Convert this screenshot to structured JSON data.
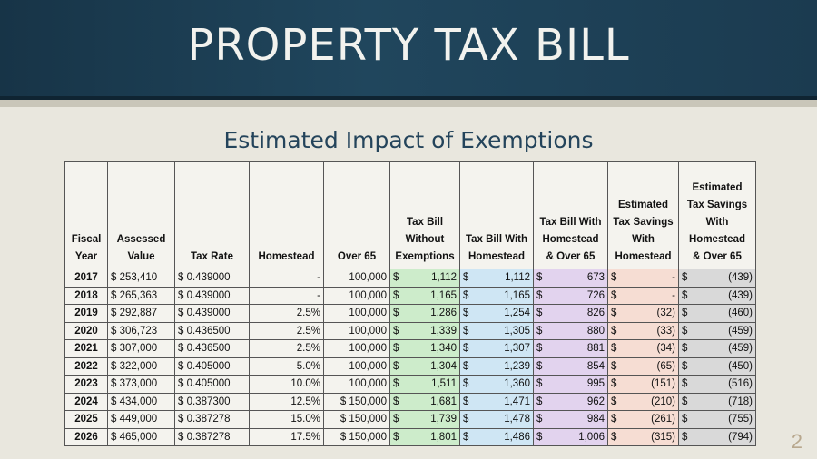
{
  "title": "PROPERTY TAX BILL",
  "subtitle": "Estimated Impact of Exemptions",
  "headers": [
    "Fiscal Year",
    "Assessed Value",
    "Tax Rate",
    "Homestead",
    "Over 65",
    "Tax Bill Without Exemptions",
    "Tax Bill With Homestead",
    "Tax Bill With Homestead & Over 65",
    "Estimated Tax Savings With Homestead",
    "Estimated Tax Savings With Homestead & Over 65"
  ],
  "header_lines": [
    [
      "Fiscal",
      "Year"
    ],
    [
      "Assessed",
      "Value"
    ],
    [
      "Tax Rate"
    ],
    [
      "Homestead"
    ],
    [
      "Over 65"
    ],
    [
      "Tax Bill",
      "Without",
      "Exemptions"
    ],
    [
      "Tax Bill With",
      "Homestead"
    ],
    [
      "Tax Bill With",
      "Homestead",
      "& Over 65"
    ],
    [
      "Estimated",
      "Tax Savings",
      "With",
      "Homestead"
    ],
    [
      "Estimated",
      "Tax Savings",
      "With",
      "Homestead",
      "& Over 65"
    ]
  ],
  "rows": [
    {
      "year": "2017",
      "assessed": "$ 253,410",
      "rate": "$ 0.439000",
      "homestead": "-",
      "over65": "100,000",
      "no_ex": "1,112",
      "with_h": "1,112",
      "with_h65": "673",
      "sav_h": "-",
      "sav_h65": "(439)"
    },
    {
      "year": "2018",
      "assessed": "$ 265,363",
      "rate": "$ 0.439000",
      "homestead": "-",
      "over65": "100,000",
      "no_ex": "1,165",
      "with_h": "1,165",
      "with_h65": "726",
      "sav_h": "-",
      "sav_h65": "(439)"
    },
    {
      "year": "2019",
      "assessed": "$ 292,887",
      "rate": "$ 0.439000",
      "homestead": "2.5%",
      "over65": "100,000",
      "no_ex": "1,286",
      "with_h": "1,254",
      "with_h65": "826",
      "sav_h": "(32)",
      "sav_h65": "(460)"
    },
    {
      "year": "2020",
      "assessed": "$ 306,723",
      "rate": "$ 0.436500",
      "homestead": "2.5%",
      "over65": "100,000",
      "no_ex": "1,339",
      "with_h": "1,305",
      "with_h65": "880",
      "sav_h": "(33)",
      "sav_h65": "(459)"
    },
    {
      "year": "2021",
      "assessed": "$ 307,000",
      "rate": "$ 0.436500",
      "homestead": "2.5%",
      "over65": "100,000",
      "no_ex": "1,340",
      "with_h": "1,307",
      "with_h65": "881",
      "sav_h": "(34)",
      "sav_h65": "(459)"
    },
    {
      "year": "2022",
      "assessed": "$ 322,000",
      "rate": "$ 0.405000",
      "homestead": "5.0%",
      "over65": "100,000",
      "no_ex": "1,304",
      "with_h": "1,239",
      "with_h65": "854",
      "sav_h": "(65)",
      "sav_h65": "(450)"
    },
    {
      "year": "2023",
      "assessed": "$ 373,000",
      "rate": "$ 0.405000",
      "homestead": "10.0%",
      "over65": "100,000",
      "no_ex": "1,511",
      "with_h": "1,360",
      "with_h65": "995",
      "sav_h": "(151)",
      "sav_h65": "(516)"
    },
    {
      "year": "2024",
      "assessed": "$ 434,000",
      "rate": "$ 0.387300",
      "homestead": "12.5%",
      "over65": "$ 150,000",
      "no_ex": "1,681",
      "with_h": "1,471",
      "with_h65": "962",
      "sav_h": "(210)",
      "sav_h65": "(718)"
    },
    {
      "year": "2025",
      "assessed": "$ 449,000",
      "rate": "$ 0.387278",
      "homestead": "15.0%",
      "over65": "$ 150,000",
      "no_ex": "1,739",
      "with_h": "1,478",
      "with_h65": "984",
      "sav_h": "(261)",
      "sav_h65": "(755)"
    },
    {
      "year": "2026",
      "assessed": "$ 465,000",
      "rate": "$ 0.387278",
      "homestead": "17.5%",
      "over65": "$ 150,000",
      "no_ex": "1,801",
      "with_h": "1,486",
      "with_h65": "1,006",
      "sav_h": "(315)",
      "sav_h65": "(794)"
    }
  ],
  "currency_symbol": "$",
  "column_colors": {
    "no_ex": "#cdeccb",
    "with_h": "#cfe6f4",
    "with_h65": "#e2d3ee",
    "sav_h": "#f6ddd3",
    "sav_h65": "#d9d9d9"
  },
  "page_number": "2"
}
